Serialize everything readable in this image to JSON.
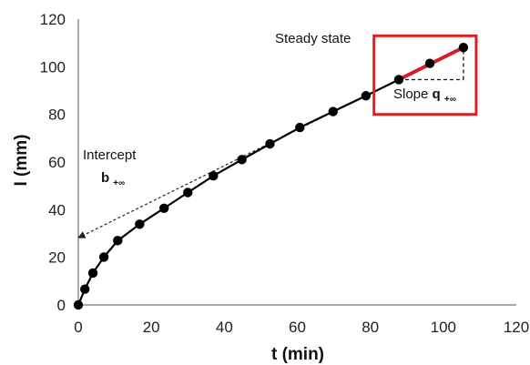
{
  "chart_data": {
    "type": "scatter",
    "title": "",
    "xlabel": "t (min)",
    "ylabel": "I (mm)",
    "xlim": [
      0,
      120
    ],
    "ylim": [
      0,
      120
    ],
    "x_ticks": [
      "0",
      "20",
      "40",
      "60",
      "80",
      "100",
      "120"
    ],
    "y_ticks": [
      "0",
      "20",
      "40",
      "60",
      "80",
      "100",
      "120"
    ],
    "grid": false,
    "series": [
      {
        "marker": "filled-circle",
        "line": "solid",
        "color": "#000000",
        "points": [
          {
            "x": 0.0,
            "y": 0.0
          },
          {
            "x": 1.8,
            "y": 6.6
          },
          {
            "x": 4.0,
            "y": 13.4
          },
          {
            "x": 7.0,
            "y": 20.1
          },
          {
            "x": 10.8,
            "y": 27.0
          },
          {
            "x": 16.8,
            "y": 33.9
          },
          {
            "x": 23.5,
            "y": 40.6
          },
          {
            "x": 30.0,
            "y": 47.2
          },
          {
            "x": 37.0,
            "y": 54.2
          },
          {
            "x": 44.8,
            "y": 61.0
          },
          {
            "x": 52.5,
            "y": 67.6
          },
          {
            "x": 60.7,
            "y": 74.5
          },
          {
            "x": 69.8,
            "y": 81.2
          },
          {
            "x": 78.8,
            "y": 87.8
          },
          {
            "x": 87.8,
            "y": 94.6
          },
          {
            "x": 96.3,
            "y": 101.4
          },
          {
            "x": 105.5,
            "y": 108.1
          }
        ]
      }
    ],
    "steady_state_fit": {
      "x": [
        87.8,
        105.5
      ],
      "y": [
        94.6,
        108.1
      ],
      "color": "#d42020"
    },
    "extrapolation": {
      "x": [
        87.8,
        0.0
      ],
      "y": [
        94.6,
        28.2
      ]
    },
    "highlight_box": {
      "x": [
        81,
        109
      ],
      "y": [
        80,
        113
      ],
      "color": "#e02020"
    },
    "annotations": {
      "steady_state": "Steady state",
      "slope_prefix": "Slope ",
      "slope_symbol": "q",
      "slope_sub": "+∞",
      "intercept": "Intercept",
      "intercept_symbol": "b",
      "intercept_sub": "+∞"
    }
  }
}
